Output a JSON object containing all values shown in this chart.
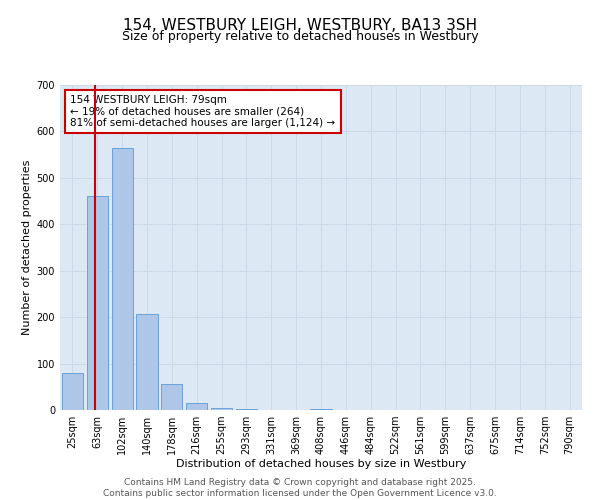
{
  "title": "154, WESTBURY LEIGH, WESTBURY, BA13 3SH",
  "subtitle": "Size of property relative to detached houses in Westbury",
  "xlabel": "Distribution of detached houses by size in Westbury",
  "ylabel": "Number of detached properties",
  "categories": [
    "25sqm",
    "63sqm",
    "102sqm",
    "140sqm",
    "178sqm",
    "216sqm",
    "255sqm",
    "293sqm",
    "331sqm",
    "369sqm",
    "408sqm",
    "446sqm",
    "484sqm",
    "522sqm",
    "561sqm",
    "599sqm",
    "637sqm",
    "675sqm",
    "714sqm",
    "752sqm",
    "790sqm"
  ],
  "values": [
    80,
    460,
    565,
    207,
    55,
    15,
    5,
    2,
    0,
    0,
    2,
    0,
    0,
    0,
    0,
    0,
    0,
    0,
    0,
    0,
    0
  ],
  "bar_color": "#aec6e8",
  "bar_edge_color": "#5b9bd5",
  "annotation_box_text": "154 WESTBURY LEIGH: 79sqm\n← 19% of detached houses are smaller (264)\n81% of semi-detached houses are larger (1,124) →",
  "annotation_box_color": "#ffffff",
  "annotation_box_edge_color": "#cc0000",
  "vline_color": "#cc0000",
  "vline_x_data": 0.924,
  "ylim": [
    0,
    700
  ],
  "yticks": [
    0,
    100,
    200,
    300,
    400,
    500,
    600,
    700
  ],
  "grid_color": "#ccd9e8",
  "background_color": "#dce9f5",
  "footer_line1": "Contains HM Land Registry data © Crown copyright and database right 2025.",
  "footer_line2": "Contains public sector information licensed under the Open Government Licence v3.0.",
  "title_fontsize": 11,
  "subtitle_fontsize": 9,
  "axis_label_fontsize": 8,
  "tick_fontsize": 7,
  "annotation_fontsize": 7.5,
  "footer_fontsize": 6.5
}
